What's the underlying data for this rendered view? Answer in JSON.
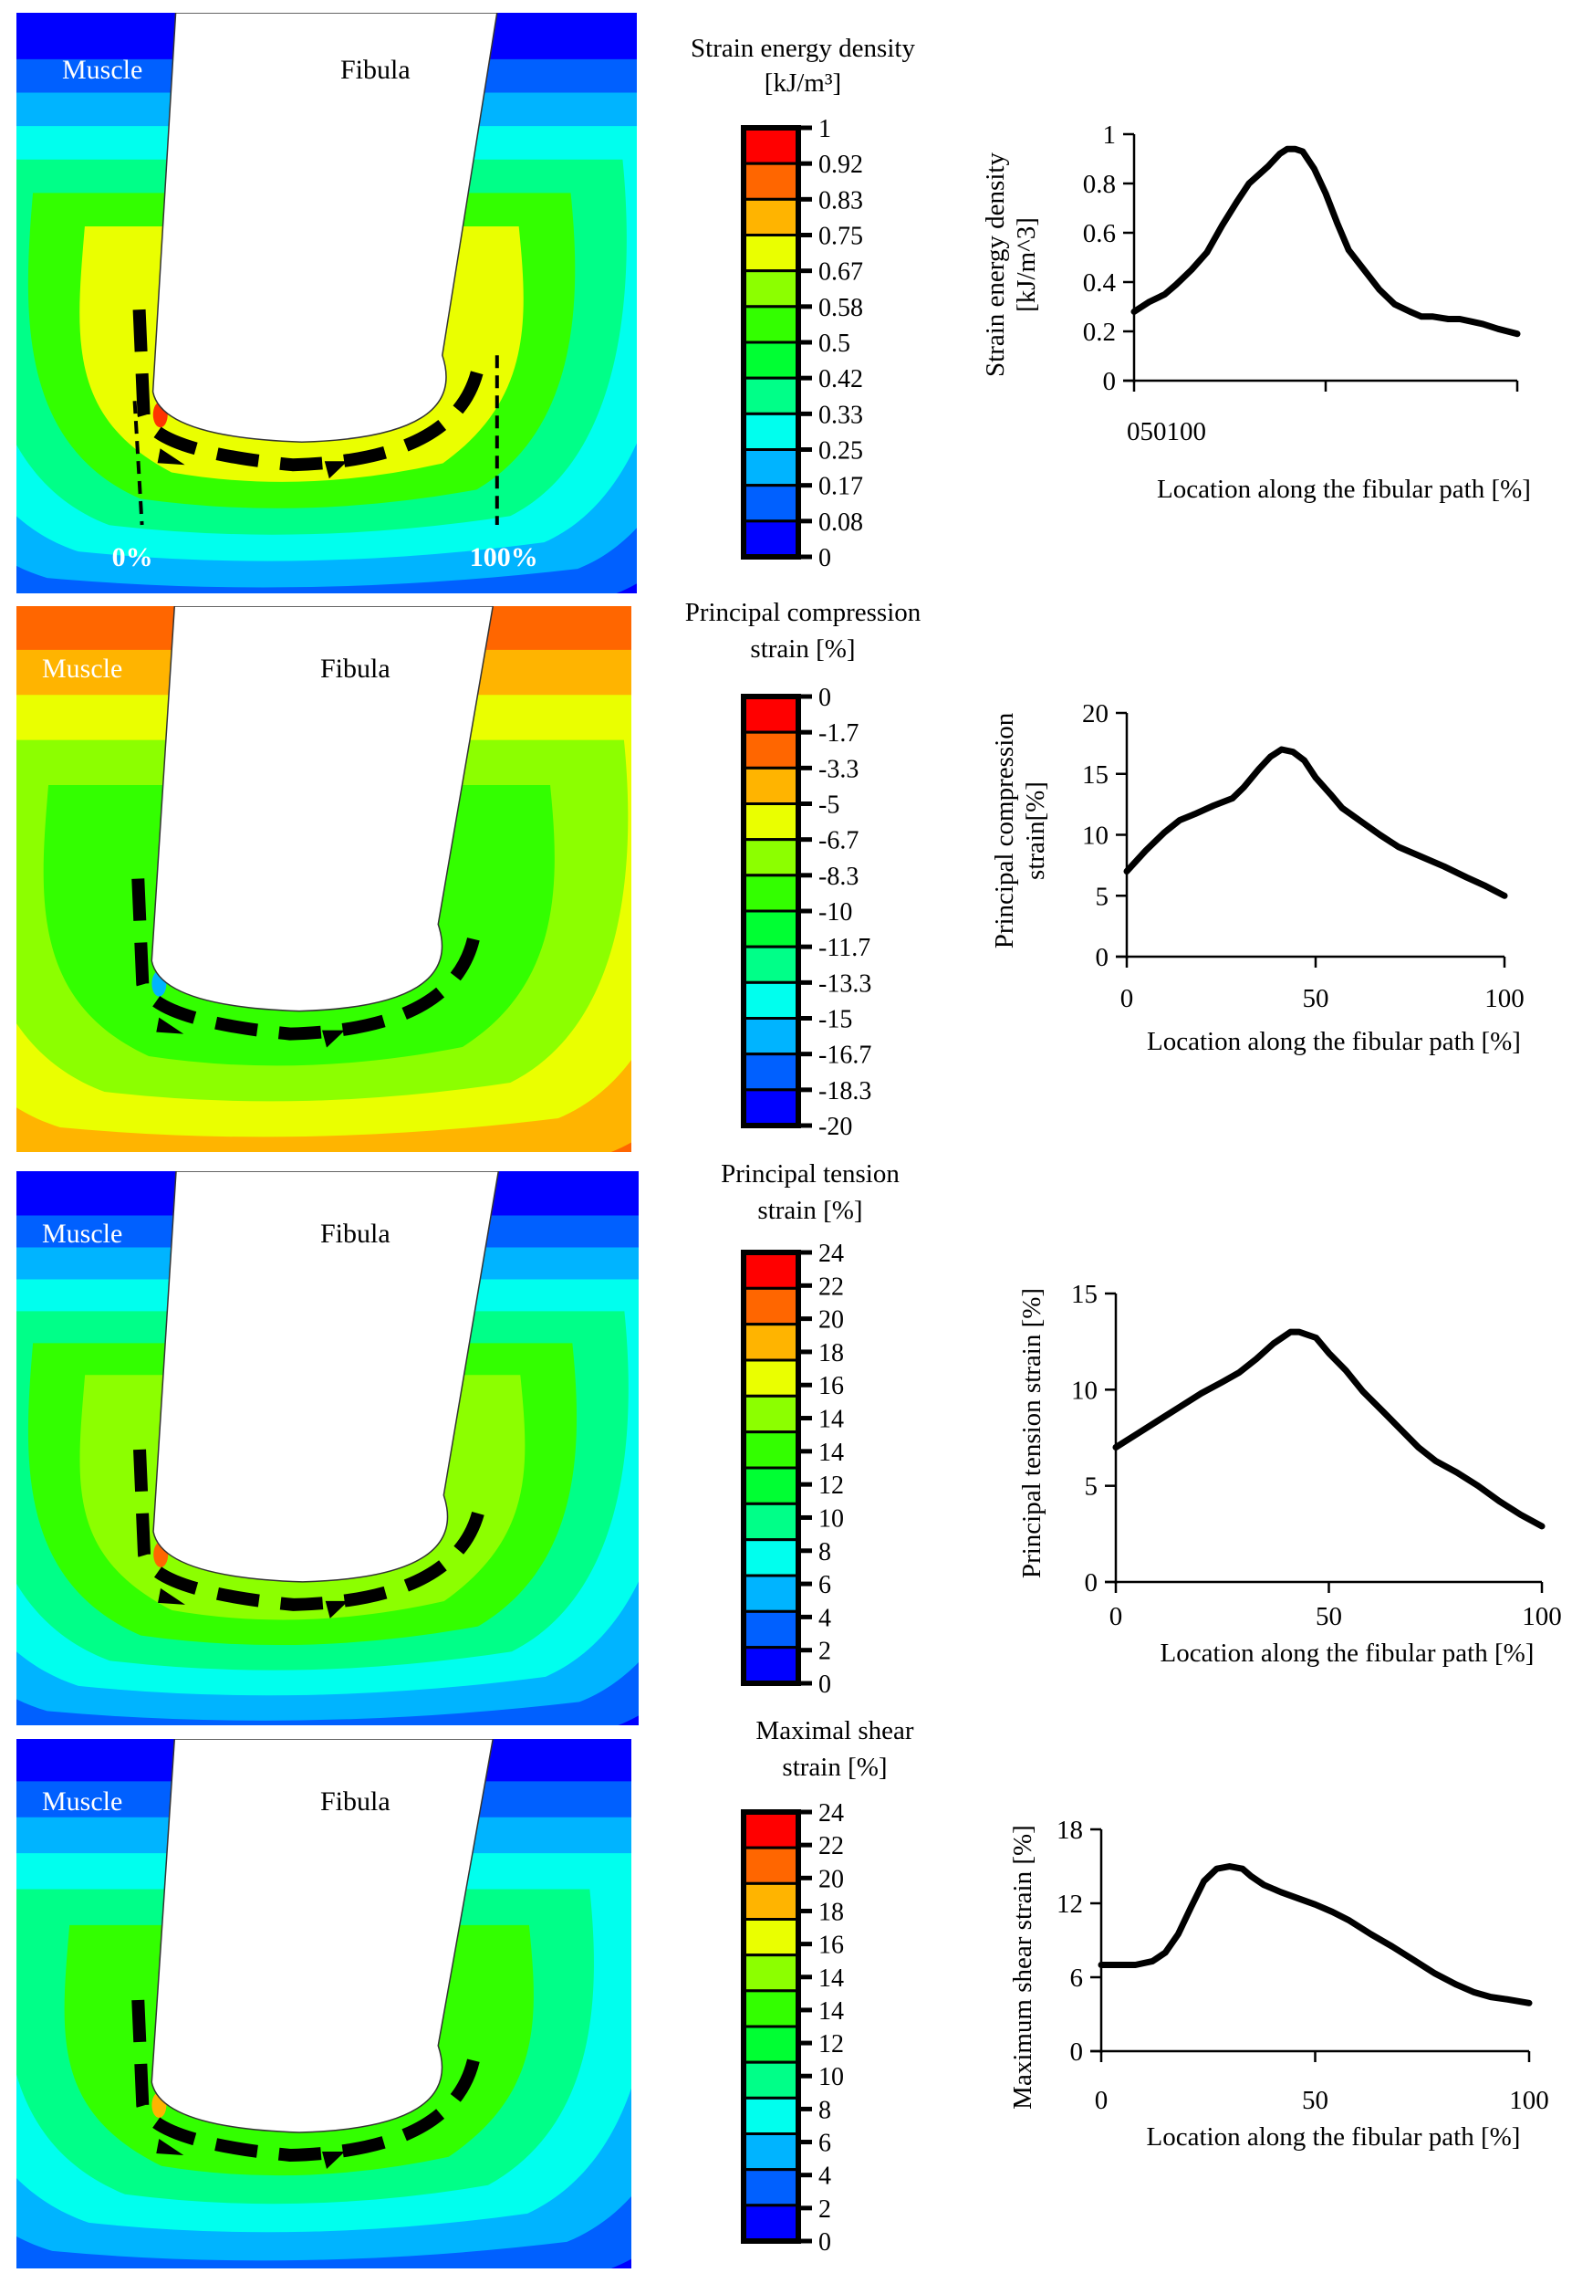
{
  "figure": {
    "panels": [
      {
        "id": "sed",
        "contour": {
          "muscle_label": "Muscle",
          "fibula_label": "Fibula",
          "path_start_label": "0%",
          "path_end_label": "100%",
          "show_path_markers": true,
          "background": "#0000ff",
          "bands": [
            "#0060ff",
            "#00b4ff",
            "#00ffee",
            "#00ff88",
            "#33ff00",
            "#eaff00"
          ],
          "hotspot": "#ff3300"
        },
        "legend": {
          "title_lines": [
            "Strain energy density",
            "[kJ/m",
            "3",
            "]"
          ],
          "title_line1": "Strain energy density",
          "title_line2": "[kJ/m³]",
          "ticks": [
            "1",
            "0.92",
            "0.83",
            "0.75",
            "0.67",
            "0.58",
            "0.5",
            "0.42",
            "0.33",
            "0.25",
            "0.17",
            "0.08",
            "0"
          ]
        }
      },
      {
        "id": "compression",
        "contour": {
          "muscle_label": "Muscle",
          "fibula_label": "Fibula",
          "show_path_markers": false,
          "background": "#ff6600",
          "bands": [
            "#ffb400",
            "#eaff00",
            "#8cff00",
            "#33ff00"
          ],
          "hotspot": "#00b4ff",
          "red_region": "#ff0000"
        },
        "legend": {
          "title_line1": "Principal compression",
          "title_line2": "strain [%]",
          "ticks": [
            "0",
            "-1.7",
            "-3.3",
            "-5",
            "-6.7",
            "-8.3",
            "-10",
            "-11.7",
            "-13.3",
            "-15",
            "-16.7",
            "-18.3",
            "-20"
          ]
        }
      },
      {
        "id": "tension",
        "contour": {
          "muscle_label": "Muscle",
          "fibula_label": "Fibula",
          "show_path_markers": false,
          "background": "#0000ff",
          "bands": [
            "#0060ff",
            "#00b4ff",
            "#00ffee",
            "#00ff88",
            "#33ff00",
            "#8cff00"
          ],
          "hotspot": "#ff6600"
        },
        "legend": {
          "title_line1": "Principal tension",
          "title_line2": "strain [%]",
          "ticks": [
            "24",
            "22",
            "20",
            "18",
            "16",
            "14",
            "14",
            "12",
            "10",
            "8",
            "6",
            "4",
            "2",
            "0"
          ]
        }
      },
      {
        "id": "shear",
        "contour": {
          "muscle_label": "Muscle",
          "fibula_label": "Fibula",
          "show_path_markers": false,
          "background": "#0000ff",
          "bands": [
            "#0060ff",
            "#00b4ff",
            "#00ffee",
            "#00ff88",
            "#33ff00"
          ],
          "hotspot": "#ffb400"
        },
        "legend": {
          "title_line1": "Maximal shear",
          "title_line2": "strain [%]",
          "ticks": [
            "24",
            "22",
            "20",
            "18",
            "16",
            "14",
            "14",
            "12",
            "10",
            "8",
            "6",
            "4",
            "2",
            "0"
          ]
        }
      }
    ],
    "legend_colors": [
      "#ff0000",
      "#ff6600",
      "#ffb400",
      "#eaff00",
      "#8cff00",
      "#33ff00",
      "#00ff33",
      "#00ff88",
      "#00ffee",
      "#00b4ff",
      "#0060ff",
      "#0000ff"
    ],
    "fibula_fill": "#ffffff",
    "path_color": "#000000"
  },
  "chart_data": [
    {
      "type": "line",
      "title": "",
      "ylabel": "Strain energy density [kJ/m^3]",
      "ylabel_lines": [
        "Strain energy density",
        "[kJ/m^3]"
      ],
      "xlabel": "Location along the fibular path [%]",
      "xlim": [
        0,
        100
      ],
      "ylim": [
        0,
        1
      ],
      "yticks": [
        "0",
        "0.2",
        "0.4",
        "0.6",
        "0.8",
        "1"
      ],
      "ytick_values": [
        0,
        0.2,
        0.4,
        0.6,
        0.8,
        1
      ],
      "xtick_values": [
        0,
        50,
        100
      ],
      "xtick_label_merged": "050100",
      "grid": false,
      "series": [
        {
          "name": "Strain energy density",
          "x": [
            0,
            4,
            8,
            11,
            15,
            19,
            23,
            27,
            30,
            35,
            38,
            40,
            42,
            44,
            47,
            50,
            53,
            56,
            60,
            64,
            68,
            72,
            75,
            78,
            82,
            85,
            88,
            91,
            95,
            100
          ],
          "y": [
            0.28,
            0.32,
            0.35,
            0.39,
            0.45,
            0.52,
            0.63,
            0.73,
            0.8,
            0.87,
            0.92,
            0.94,
            0.94,
            0.93,
            0.86,
            0.76,
            0.64,
            0.53,
            0.45,
            0.37,
            0.31,
            0.28,
            0.26,
            0.26,
            0.25,
            0.25,
            0.24,
            0.23,
            0.21,
            0.19
          ]
        }
      ]
    },
    {
      "type": "line",
      "title": "",
      "ylabel": "Principal compression strain[%]",
      "ylabel_lines": [
        "Principal compression",
        "strain[%]"
      ],
      "xlabel": "Location along the fibular path [%]",
      "xlim": [
        0,
        100
      ],
      "ylim": [
        0,
        20
      ],
      "yticks": [
        "0",
        "5",
        "10",
        "15",
        "20"
      ],
      "ytick_values": [
        0,
        5,
        10,
        15,
        20
      ],
      "xticks": [
        "0",
        "50",
        "100"
      ],
      "xtick_values": [
        0,
        50,
        100
      ],
      "grid": false,
      "series": [
        {
          "name": "Principal compression strain",
          "x": [
            0,
            5,
            10,
            14,
            18,
            23,
            28,
            31,
            35,
            38,
            41,
            44,
            47,
            50,
            54,
            57,
            62,
            67,
            72,
            78,
            84,
            90,
            95,
            100
          ],
          "y": [
            7,
            8.7,
            10.2,
            11.2,
            11.7,
            12.4,
            13,
            13.9,
            15.4,
            16.4,
            17,
            16.8,
            16.1,
            14.7,
            13.3,
            12.2,
            11.1,
            10,
            9,
            8.2,
            7.4,
            6.5,
            5.8,
            5
          ]
        }
      ]
    },
    {
      "type": "line",
      "title": "",
      "ylabel": "Principal tension strain [%]",
      "xlabel": "Location along the fibular path [%]",
      "xlim": [
        0,
        100
      ],
      "ylim": [
        0,
        15
      ],
      "yticks": [
        "0",
        "5",
        "10",
        "15"
      ],
      "ytick_values": [
        0,
        5,
        10,
        15
      ],
      "xticks": [
        "0",
        "50",
        "100"
      ],
      "xtick_values": [
        0,
        50,
        100
      ],
      "grid": false,
      "series": [
        {
          "name": "Principal tension strain",
          "x": [
            0,
            5,
            10,
            15,
            20,
            25,
            29,
            33,
            37,
            41,
            43,
            47,
            50,
            54,
            58,
            63,
            67,
            71,
            75,
            80,
            85,
            90,
            95,
            100
          ],
          "y": [
            7,
            7.7,
            8.4,
            9.1,
            9.8,
            10.4,
            10.9,
            11.6,
            12.4,
            13,
            13,
            12.7,
            11.9,
            11,
            9.9,
            8.8,
            7.9,
            7,
            6.3,
            5.7,
            5,
            4.2,
            3.5,
            2.9
          ]
        }
      ]
    },
    {
      "type": "line",
      "title": "",
      "ylabel": "Maximum shear strain [%]",
      "xlabel": "Location along the fibular path [%]",
      "xlim": [
        0,
        100
      ],
      "ylim": [
        0,
        18
      ],
      "yticks": [
        "0",
        "6",
        "12",
        "18"
      ],
      "ytick_values": [
        0,
        6,
        12,
        18
      ],
      "xticks": [
        "0",
        "50",
        "100"
      ],
      "xtick_values": [
        0,
        50,
        100
      ],
      "grid": false,
      "series": [
        {
          "name": "Maximum shear strain",
          "x": [
            0,
            4,
            8,
            12,
            15,
            18,
            21,
            24,
            27,
            30,
            33,
            35,
            38,
            42,
            46,
            50,
            54,
            58,
            63,
            68,
            73,
            78,
            83,
            87,
            91,
            95,
            100
          ],
          "y": [
            7,
            7,
            7,
            7.3,
            8,
            9.5,
            11.7,
            13.8,
            14.8,
            15,
            14.8,
            14.2,
            13.5,
            12.9,
            12.4,
            11.9,
            11.3,
            10.6,
            9.5,
            8.5,
            7.4,
            6.3,
            5.4,
            4.8,
            4.4,
            4.2,
            3.9
          ]
        }
      ]
    }
  ]
}
